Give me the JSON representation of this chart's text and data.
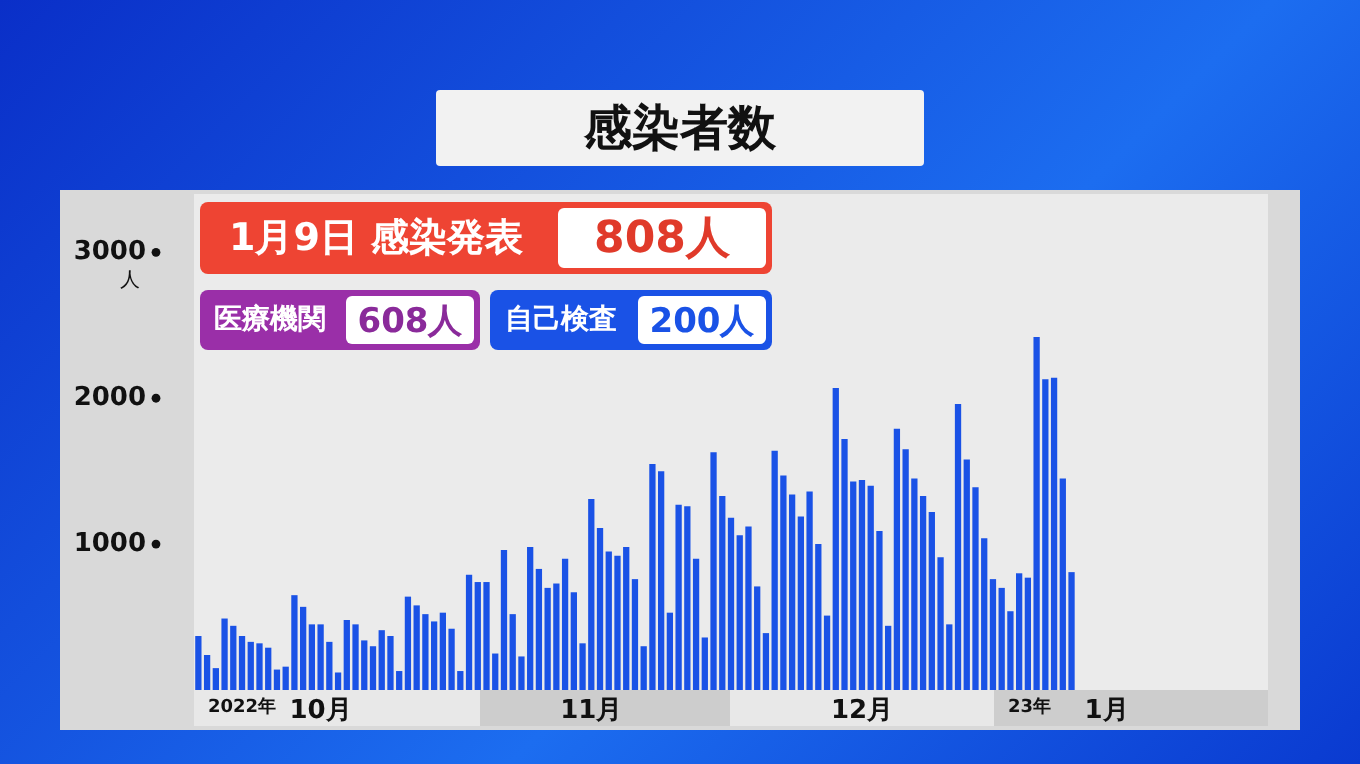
{
  "chart_data": {
    "type": "bar",
    "title": "感染者数",
    "ylabel": "人",
    "categories": [
      null,
      null,
      null,
      null,
      null,
      null,
      null,
      null,
      null,
      null,
      null,
      null,
      null,
      null,
      "10月",
      null,
      null,
      null,
      null,
      null,
      null,
      null,
      null,
      null,
      null,
      null,
      null,
      null,
      null,
      null,
      null,
      null,
      null,
      null,
      null,
      null,
      null,
      null,
      null,
      null,
      null,
      null,
      null,
      null,
      null,
      "11月",
      null,
      null,
      null,
      null,
      null,
      null,
      null,
      null,
      null,
      null,
      null,
      null,
      null,
      null,
      null,
      null,
      null,
      null,
      null,
      null,
      null,
      null,
      null,
      null,
      null,
      null,
      null,
      null,
      null,
      null,
      "12月",
      null,
      null,
      null,
      null,
      null,
      null,
      null,
      null,
      null,
      null,
      null,
      null,
      null,
      null,
      null,
      null,
      null,
      null,
      null,
      null,
      null,
      null,
      null,
      null,
      null,
      null,
      null,
      "1月",
      null,
      null,
      null,
      null,
      null,
      null,
      null,
      null,
      null,
      null,
      null,
      null,
      null,
      null,
      null,
      null,
      null,
      null
    ],
    "values": [
      370,
      240,
      150,
      490,
      440,
      370,
      330,
      320,
      290,
      140,
      160,
      650,
      570,
      450,
      450,
      330,
      120,
      480,
      450,
      340,
      300,
      410,
      370,
      130,
      640,
      580,
      520,
      470,
      530,
      420,
      130,
      790,
      740,
      740,
      250,
      960,
      520,
      230,
      980,
      830,
      700,
      730,
      900,
      670,
      320,
      1310,
      1110,
      950,
      920,
      980,
      760,
      300,
      1550,
      1500,
      530,
      1270,
      1260,
      900,
      360,
      1630,
      1330,
      1180,
      1060,
      1120,
      710,
      390,
      1640,
      1470,
      1340,
      1190,
      1360,
      1000,
      510,
      2070,
      1720,
      1430,
      1440,
      1400,
      1090,
      440,
      1790,
      1650,
      1450,
      1330,
      1220,
      910,
      450,
      1960,
      1580,
      1390,
      1040,
      760,
      700,
      540,
      800,
      770,
      2420,
      2130,
      2140,
      1450,
      808,
      null,
      null,
      null,
      null,
      null,
      null,
      null,
      null,
      null,
      null,
      null,
      null,
      null,
      null,
      null,
      null,
      null,
      null,
      null,
      null,
      null,
      null
    ],
    "color": "#1a52e6",
    "ylim": [
      0,
      3400
    ],
    "yticks": [
      1000,
      2000,
      3000
    ],
    "grid": false,
    "legend": false,
    "annotations": [
      "1月9日 感染発表",
      "808人",
      "医療機関",
      "608人",
      "自己検査",
      "200人",
      "2022年",
      "23年"
    ]
  }
}
